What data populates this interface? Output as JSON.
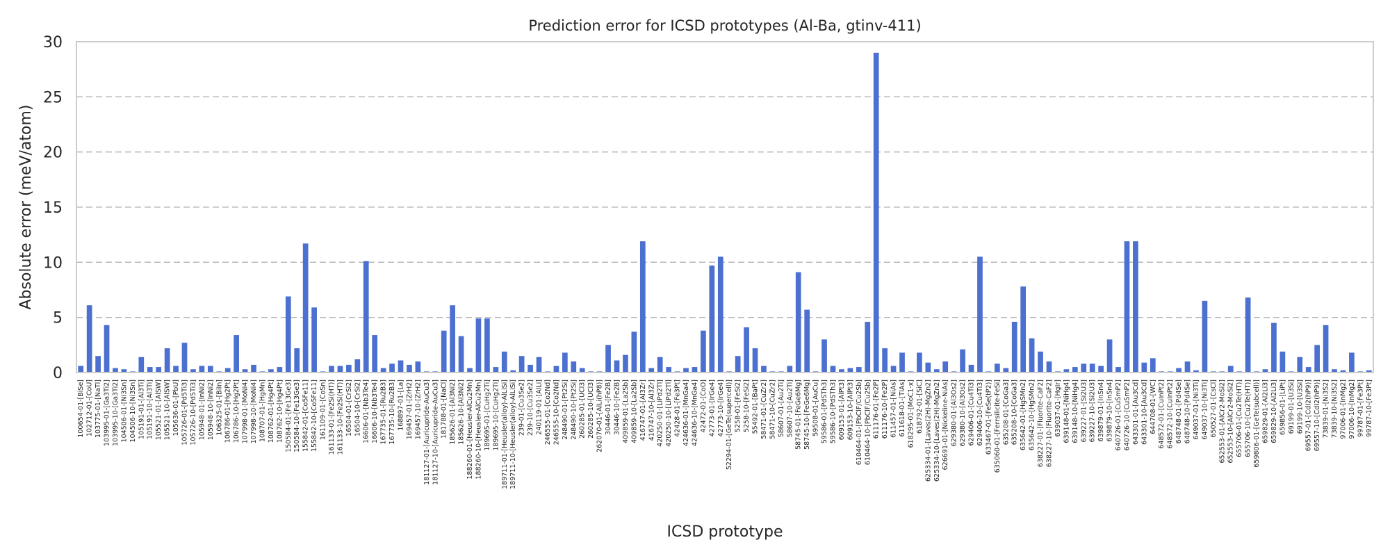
{
  "chart_data": {
    "type": "bar",
    "title": "Prediction error for ICSD prototypes (Al-Ba, gtinv-411)",
    "xlabel": "ICSD prototype",
    "ylabel": "Absolute error (meV/atom)",
    "ylim": [
      0,
      30
    ],
    "yticks": [
      0,
      5,
      10,
      15,
      20,
      25,
      30
    ],
    "grid": "y-dashed",
    "colors": {
      "bar": "#4c70d0",
      "grid": "#b0b0b0",
      "frame": "#cccccc",
      "text": "#262626"
    },
    "categories": [
      "100654-01-[BiSe]",
      "102712-01-[CoU]",
      "103775-01-[NaTl]",
      "103995-01-[Ga3Ti2]",
      "103995-10-[Ga3Ti2]",
      "104506-01-[Ni3Sn]",
      "104506-10-[Ni3Sn]",
      "105191-01-[Al3Ti]",
      "105191-10-[Al3Ti]",
      "105521-01-[AlSW]",
      "105521-10-[AlSW]",
      "105636-01-[PbU]",
      "105726-01-[Pd5Ti3]",
      "105726-10-[Pd5Ti3]",
      "105948-01-[InNi2]",
      "105948-10-[InNi2]",
      "106325-01-[BiIn]",
      "106786-01-[Hg2Pt]",
      "106786-10-[Hg2Pt]",
      "107998-01-[MoNi4]",
      "107998-10-[MoNi4]",
      "108707-01-[HgMn]",
      "108762-01-[Hg4Pt]",
      "108762-10-[Hg4Pt]",
      "150584-01-[Fe13Ge3]",
      "150584-10-[Fe13Ge3]",
      "155842-01-[Co5Fe11]",
      "155842-10-[Co5Fe11]",
      "161109-01-[CoSn]",
      "161133-01-[Fe2Si(HT)]",
      "161133-10-[Fe2Si(HT)]",
      "16504-01-[CrSi2]",
      "16504-10-[CrSi2]",
      "16606-01-[Nb3Te4]",
      "16606-10-[Nb3Te4]",
      "167735-01-[Ru2B3]",
      "167735-10-[Ru2B3]",
      "168897-01-[La]",
      "169457-01-[ZrH2]",
      "169457-10-[ZrH2]",
      "181127-01-[Auricupride-AuCu3]",
      "181127-10-[Auricupride-AuCu3]",
      "181788-01-[NaCl]",
      "185626-01-[Al3Ni2]",
      "185626-10-[Al3Ni2]",
      "188260-01-[Heusler-AlCu2Mn]",
      "188260-10-[Heusler-AlCu2Mn]",
      "189695-01-[CuHg2Ti]",
      "189695-10-[CuHg2Ti]",
      "189711-01-[Heusler(alloy)-AlLiSi]",
      "189711-10-[Heusler(alloy)-AlLiSi]",
      "239-01-[Cu3Se2]",
      "239-10-[Cu3Se2]",
      "240119-01-[AlLi]",
      "246555-01-[Co2Nd]",
      "246555-10-[Co2Nd]",
      "248490-01-[Pt2Si]",
      "248490-10-[Pt2Si]",
      "260285-01-[UCl3]",
      "260285-10-[UCl3]",
      "262070-01-[AlLi(hP8)]",
      "30446-01-[Fe2B]",
      "30446-10-[Fe2B]",
      "409859-01-[La2Sb]",
      "409859-10-[La2Sb]",
      "416747-01-[Al3Zr]",
      "416747-10-[Al3Zr]",
      "420250-01-[LiPd2Tl]",
      "420250-10-[LiPd2Tl]",
      "42428-01-[Fe3Pt]",
      "424636-01-[MnGa4]",
      "424636-10-[MnGa4]",
      "42472-01-[CoO]",
      "42773-01-[IrGe4]",
      "42773-10-[IrGe4]",
      "52294-01-[GeTe(supercell)]",
      "5258-01-[FeSi2]",
      "5258-10-[FeSi2]",
      "55492-01-[BaPt]",
      "58471-01-[CuZr2]",
      "58471-10-[CuZr2]",
      "58607-01-[Au2Ti]",
      "58607-10-[Au2Ti]",
      "58745-01-[FeGe6Mg]",
      "58745-10-[FeGe6Mg]",
      "59508-01-[AuCu]",
      "59586-01-[PdSTh3]",
      "59586-10-[PdSTh3]",
      "609153-01-[AlPt3]",
      "609153-10-[AlPt3]",
      "610464-01-[PbClF/Cu2Sb]",
      "610464-10-[PbClF/Cu2Sb]",
      "611176-01-[Fe2P]",
      "611176-10-[Fe2P]",
      "611457-01-[NiAs]",
      "611618-01-[TlAs]",
      "618295-01-[MoC1-x]",
      "618792-01-[SiC]",
      "625334-01-[Laves(2H)-MgZn2]",
      "625334-10-[Laves(2H)-MgZn2]",
      "626691-01-[Nickeline-NiAs]",
      "629380-01-[Al3Os2]",
      "629380-10-[Al3Os2]",
      "629406-01-[Cu4Ti3]",
      "629406-10-[Cu4Ti3]",
      "633467-01-[FeSe(tP2)]",
      "635060-01-[Ferrsilicite-FeSi]",
      "635208-01-[CoGa3]",
      "635208-10-[CoGa3]",
      "635642-01-[HgSMn2]",
      "635642-10-[HgSMn2]",
      "638227-01-[Fluorite-CaF2]",
      "638227-10-[Fluorite-CaF2]",
      "639037-01-[HgIr]",
      "639148-01-[NiHg4]",
      "639148-10-[NiHg4]",
      "639227-01-[Si2U3]",
      "639227-10-[Si2U3]",
      "639879-01-[InSn4]",
      "639879-10-[InSn4]",
      "640726-01-[CuSmP2]",
      "640726-10-[CuSmP2]",
      "643301-01-[Au3Cd]",
      "643301-10-[Au3Cd]",
      "644708-01-[WC]",
      "648572-01-[CuInPt2]",
      "648572-10-[CuInPt2]",
      "648748-01-[Pd4Se]",
      "648748-10-[Pd4Se]",
      "649037-01-[Ni3Ti]",
      "649037-10-[Ni3Ti]",
      "650527-01-[CsCl]",
      "652553-01-[AlCr2-MoSi2]",
      "652553-10-[AlCr2-MoSi2]",
      "655706-01-[Cu2Te(HT)]",
      "655706-10-[Cu2Te(HT)]",
      "659806-01-[GeTe(subcell)]",
      "659829-01-[Al2Li3]",
      "659829-10-[Al2Li3]",
      "659856-01-[LiPt]",
      "69199-01-[U3Si]",
      "69199-10-[U3Si]",
      "69557-01-[CdI2(hP9)]",
      "69557-10-[CdI2(hP9)]",
      "73839-01-[Ni3S2]",
      "73839-10-[Ni3S2]",
      "97006-01-[InMg2]",
      "97006-10-[InMg2]",
      "99787-01-[Fe3Pt]",
      "99787-10-[Fe3Pt]"
    ],
    "values": [
      0.6,
      6.1,
      1.5,
      4.3,
      0.4,
      0.3,
      0.1,
      1.4,
      0.5,
      0.5,
      2.2,
      0.6,
      2.7,
      0.3,
      0.6,
      0.6,
      0.1,
      0.4,
      3.4,
      0.3,
      0.7,
      0.1,
      0.3,
      0.5,
      6.9,
      2.2,
      11.7,
      5.9,
      0.1,
      0.6,
      0.6,
      0.7,
      1.2,
      10.1,
      3.4,
      0.4,
      0.8,
      1.1,
      0.7,
      1.0,
      0.1,
      0.1,
      3.8,
      6.1,
      3.3,
      0.4,
      4.9,
      4.9,
      0.5,
      1.9,
      0.2,
      1.5,
      0.7,
      1.4,
      0.1,
      0.6,
      1.8,
      1.0,
      0.4,
      0.1,
      0.1,
      2.5,
      1.1,
      1.6,
      3.7,
      11.9,
      0.4,
      1.4,
      0.5,
      0.1,
      0.4,
      0.5,
      3.8,
      9.7,
      10.5,
      0.1,
      1.5,
      4.1,
      2.2,
      0.6,
      0.1,
      0.1,
      0.6,
      9.1,
      5.7,
      0.1,
      3.0,
      0.6,
      0.3,
      0.4,
      0.5,
      4.6,
      29.0,
      2.2,
      0.6,
      1.8,
      0.1,
      1.8,
      0.9,
      0.3,
      1.0,
      0.1,
      2.1,
      0.7,
      10.5,
      0.1,
      0.8,
      0.4,
      4.6,
      7.8,
      3.1,
      1.9,
      1.0,
      0.1,
      0.3,
      0.5,
      0.8,
      0.8,
      0.6,
      3.0,
      0.5,
      11.9,
      11.9,
      0.9,
      1.3,
      0.1,
      0.1,
      0.4,
      1.0,
      0.2,
      6.5,
      0.1,
      0.1,
      0.6,
      0.1,
      6.8,
      0.1,
      0.3,
      4.5,
      1.9,
      0.1,
      1.4,
      0.5,
      2.5,
      4.3,
      0.3,
      0.2,
      1.8,
      0.1,
      0.2
    ]
  }
}
